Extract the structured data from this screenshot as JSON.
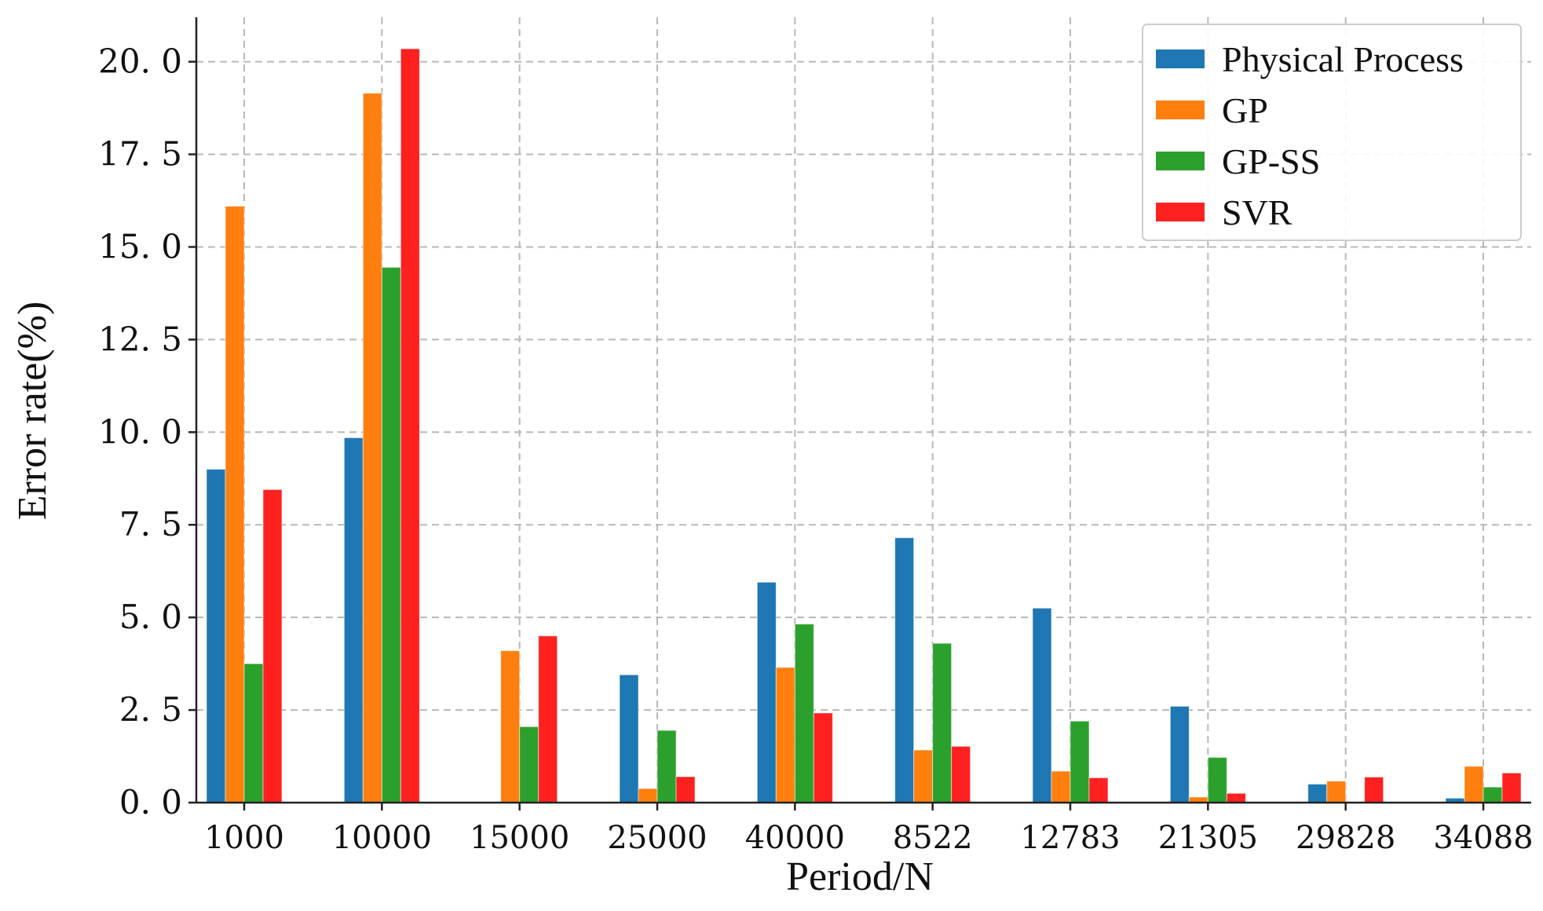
{
  "chart_data": {
    "type": "bar",
    "title": "",
    "xlabel": "Period/N",
    "ylabel": "Error rate(%)",
    "ylim": [
      0,
      21.2
    ],
    "yticks": [
      0,
      2.5,
      5,
      7.5,
      10,
      12.5,
      15,
      17.5,
      20
    ],
    "ytick_labels": [
      "0. 0",
      "2. 5",
      "5. 0",
      "7. 5",
      "10. 0",
      "12. 5",
      "15. 0",
      "17. 5",
      "20. 0"
    ],
    "grid": true,
    "legend_position": "top-right",
    "categories": [
      "1000",
      "10000",
      "15000",
      "25000",
      "40000",
      "8522",
      "12783",
      "21305",
      "29828",
      "34088"
    ],
    "series": [
      {
        "name": "Physical Process",
        "color": "#1f77b4",
        "values": [
          9.0,
          9.85,
          0.02,
          3.45,
          5.95,
          7.15,
          5.25,
          2.6,
          0.5,
          0.12
        ]
      },
      {
        "name": "GP",
        "color": "#ff7f0e",
        "values": [
          16.1,
          19.15,
          4.1,
          0.38,
          3.65,
          1.42,
          0.85,
          0.15,
          0.58,
          0.98
        ]
      },
      {
        "name": "GP-SS",
        "color": "#2ca02c",
        "values": [
          3.75,
          14.45,
          2.05,
          1.95,
          4.82,
          4.3,
          2.2,
          1.22,
          0.0,
          0.42
        ]
      },
      {
        "name": "SVR",
        "color": "#ff2020",
        "values": [
          8.45,
          20.35,
          4.5,
          0.7,
          2.42,
          1.52,
          0.67,
          0.25,
          0.69,
          0.8
        ]
      }
    ]
  }
}
